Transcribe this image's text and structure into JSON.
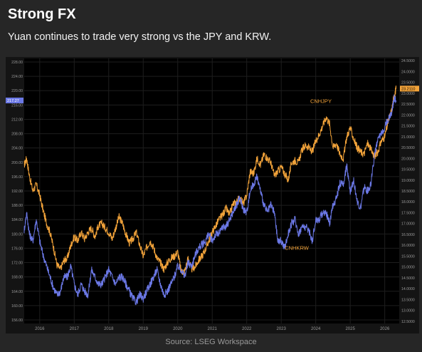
{
  "header": {
    "title": "Strong FX",
    "subtitle": "Yuan continues to trade very strong vs the JPY and KRW."
  },
  "footer": {
    "source": "Source: LSEG Workspace"
  },
  "colors": {
    "background": "#262626",
    "plot_background": "#000000",
    "cnhjpy": "#f2a33a",
    "cnhkrw": "#6b78e6",
    "grid": "#1e1e1e",
    "axis_text": "#9a9a9a"
  },
  "chart_data": {
    "type": "line",
    "title": "",
    "xlabel": "",
    "ylabel": "",
    "grid": true,
    "x_tick_labels": [
      "2016",
      "2017",
      "2018",
      "2019",
      "2020",
      "2021",
      "2022",
      "2023",
      "2024",
      "2025",
      "2026"
    ],
    "x_range": [
      2015.55,
      2026.42
    ],
    "left_axis": {
      "ylim": [
        155,
        229
      ],
      "ticks": [
        "156.00",
        "160.00",
        "164.00",
        "168.00",
        "172.00",
        "176.00",
        "180.00",
        "184.00",
        "188.00",
        "192.00",
        "196.00",
        "200.00",
        "204.00",
        "208.00",
        "212.00",
        "216.00",
        "220.00",
        "224.00",
        "228.00"
      ],
      "last_value_label": "217.27",
      "last_value_color": "#6b78e6"
    },
    "right_axis": {
      "ylim": [
        12.4,
        24.6
      ],
      "ticks": [
        "12.5000",
        "13.0000",
        "13.5000",
        "14.0000",
        "14.5000",
        "15.0000",
        "15.5000",
        "16.0000",
        "16.5000",
        "17.0000",
        "17.5000",
        "18.0000",
        "18.5000",
        "19.0000",
        "19.5000",
        "20.0000",
        "20.5000",
        "21.0000",
        "21.5000",
        "22.0000",
        "22.5000",
        "23.0000",
        "23.5000",
        "24.0000",
        "24.5000"
      ],
      "last_value_label": "23.2110",
      "last_value_color": "#f2a33a"
    },
    "series": [
      {
        "name": "CNHJPY",
        "axis": "right",
        "label": "CNHJPY",
        "x": [
          2015.55,
          2015.62,
          2015.7,
          2015.8,
          2015.9,
          2016.0,
          2016.1,
          2016.2,
          2016.3,
          2016.4,
          2016.5,
          2016.6,
          2016.7,
          2016.8,
          2016.9,
          2017.0,
          2017.1,
          2017.2,
          2017.3,
          2017.4,
          2017.5,
          2017.6,
          2017.7,
          2017.8,
          2017.9,
          2018.0,
          2018.1,
          2018.2,
          2018.3,
          2018.4,
          2018.5,
          2018.6,
          2018.7,
          2018.8,
          2018.9,
          2019.0,
          2019.1,
          2019.2,
          2019.3,
          2019.4,
          2019.5,
          2019.6,
          2019.7,
          2019.8,
          2019.9,
          2020.0,
          2020.1,
          2020.2,
          2020.3,
          2020.4,
          2020.5,
          2020.6,
          2020.7,
          2020.8,
          2020.9,
          2021.0,
          2021.1,
          2021.2,
          2021.3,
          2021.4,
          2021.5,
          2021.6,
          2021.7,
          2021.8,
          2021.9,
          2022.0,
          2022.1,
          2022.2,
          2022.3,
          2022.4,
          2022.5,
          2022.6,
          2022.7,
          2022.8,
          2022.9,
          2023.0,
          2023.1,
          2023.2,
          2023.3,
          2023.4,
          2023.5,
          2023.6,
          2023.7,
          2023.8,
          2023.9,
          2024.0,
          2024.1,
          2024.2,
          2024.3,
          2024.4,
          2024.5,
          2024.6,
          2024.7,
          2024.8,
          2024.9,
          2025.0,
          2025.1,
          2025.2,
          2025.3,
          2025.4,
          2025.5,
          2025.6,
          2025.7,
          2025.8,
          2025.9,
          2026.0,
          2026.1,
          2026.2,
          2026.27,
          2026.33
        ],
        "y": [
          19.7,
          20.0,
          19.2,
          18.5,
          18.8,
          18.3,
          17.6,
          17.0,
          16.6,
          15.9,
          15.1,
          14.9,
          15.3,
          15.4,
          16.0,
          16.4,
          16.2,
          16.6,
          16.3,
          16.6,
          16.8,
          16.4,
          16.9,
          17.0,
          16.8,
          16.6,
          16.3,
          16.8,
          17.3,
          17.0,
          16.5,
          16.1,
          16.3,
          16.6,
          16.0,
          15.5,
          15.9,
          16.2,
          15.9,
          15.4,
          15.2,
          14.9,
          15.2,
          15.4,
          15.5,
          15.7,
          14.8,
          14.8,
          15.4,
          14.9,
          15.0,
          15.3,
          15.5,
          15.8,
          16.2,
          16.6,
          16.9,
          17.2,
          17.4,
          17.7,
          17.4,
          17.9,
          18.0,
          18.2,
          17.9,
          18.3,
          19.4,
          19.3,
          20.0,
          19.7,
          20.2,
          20.0,
          19.8,
          19.2,
          19.4,
          19.6,
          19.3,
          19.0,
          19.8,
          19.9,
          19.8,
          20.4,
          20.6,
          20.5,
          20.3,
          20.8,
          21.1,
          21.5,
          21.9,
          21.6,
          20.5,
          20.7,
          20.2,
          20.0,
          21.0,
          21.4,
          20.9,
          20.5,
          20.3,
          20.2,
          20.7,
          20.4,
          20.1,
          20.3,
          20.8,
          21.0,
          21.7,
          22.2,
          22.9,
          23.2
        ]
      },
      {
        "name": "CNHKRW",
        "axis": "left",
        "label": "CNHKRW",
        "x": [
          2015.55,
          2015.62,
          2015.7,
          2015.8,
          2015.9,
          2016.0,
          2016.1,
          2016.2,
          2016.3,
          2016.4,
          2016.5,
          2016.6,
          2016.7,
          2016.8,
          2016.9,
          2017.0,
          2017.1,
          2017.2,
          2017.3,
          2017.4,
          2017.5,
          2017.6,
          2017.7,
          2017.8,
          2017.9,
          2018.0,
          2018.1,
          2018.2,
          2018.3,
          2018.4,
          2018.5,
          2018.6,
          2018.7,
          2018.8,
          2018.9,
          2019.0,
          2019.1,
          2019.2,
          2019.3,
          2019.4,
          2019.5,
          2019.6,
          2019.7,
          2019.8,
          2019.9,
          2020.0,
          2020.1,
          2020.2,
          2020.3,
          2020.4,
          2020.5,
          2020.6,
          2020.7,
          2020.8,
          2020.9,
          2021.0,
          2021.1,
          2021.2,
          2021.3,
          2021.4,
          2021.5,
          2021.6,
          2021.7,
          2021.8,
          2021.9,
          2022.0,
          2022.1,
          2022.2,
          2022.3,
          2022.4,
          2022.5,
          2022.6,
          2022.7,
          2022.8,
          2022.9,
          2023.0,
          2023.1,
          2023.2,
          2023.3,
          2023.4,
          2023.5,
          2023.6,
          2023.7,
          2023.8,
          2023.9,
          2024.0,
          2024.1,
          2024.2,
          2024.3,
          2024.4,
          2024.5,
          2024.6,
          2024.7,
          2024.8,
          2024.9,
          2025.0,
          2025.1,
          2025.2,
          2025.3,
          2025.4,
          2025.5,
          2025.6,
          2025.7,
          2025.8,
          2025.9,
          2026.0,
          2026.1,
          2026.2,
          2026.27,
          2026.33
        ],
        "y": [
          181,
          186,
          180,
          178,
          184,
          178,
          174,
          171,
          168,
          165,
          163,
          164,
          168,
          168,
          171,
          166,
          163,
          166,
          164,
          163,
          170,
          168,
          166,
          166,
          168,
          170,
          168,
          166,
          168,
          168,
          166,
          164,
          162,
          161,
          163,
          162,
          164,
          166,
          168,
          170,
          166,
          163,
          164,
          166,
          168,
          171,
          170,
          168,
          172,
          171,
          174,
          176,
          177,
          178,
          180,
          178,
          180,
          180,
          182,
          182,
          184,
          186,
          188,
          190,
          187,
          186,
          192,
          194,
          196,
          192,
          188,
          186,
          188,
          186,
          178,
          178,
          176,
          180,
          183,
          184,
          180,
          182,
          182,
          181,
          178,
          184,
          184,
          186,
          186,
          183,
          188,
          190,
          194,
          194,
          199,
          192,
          195,
          189,
          187,
          193,
          192,
          194,
          202,
          206,
          208,
          210,
          212,
          214,
          218,
          217.27
        ]
      }
    ]
  }
}
